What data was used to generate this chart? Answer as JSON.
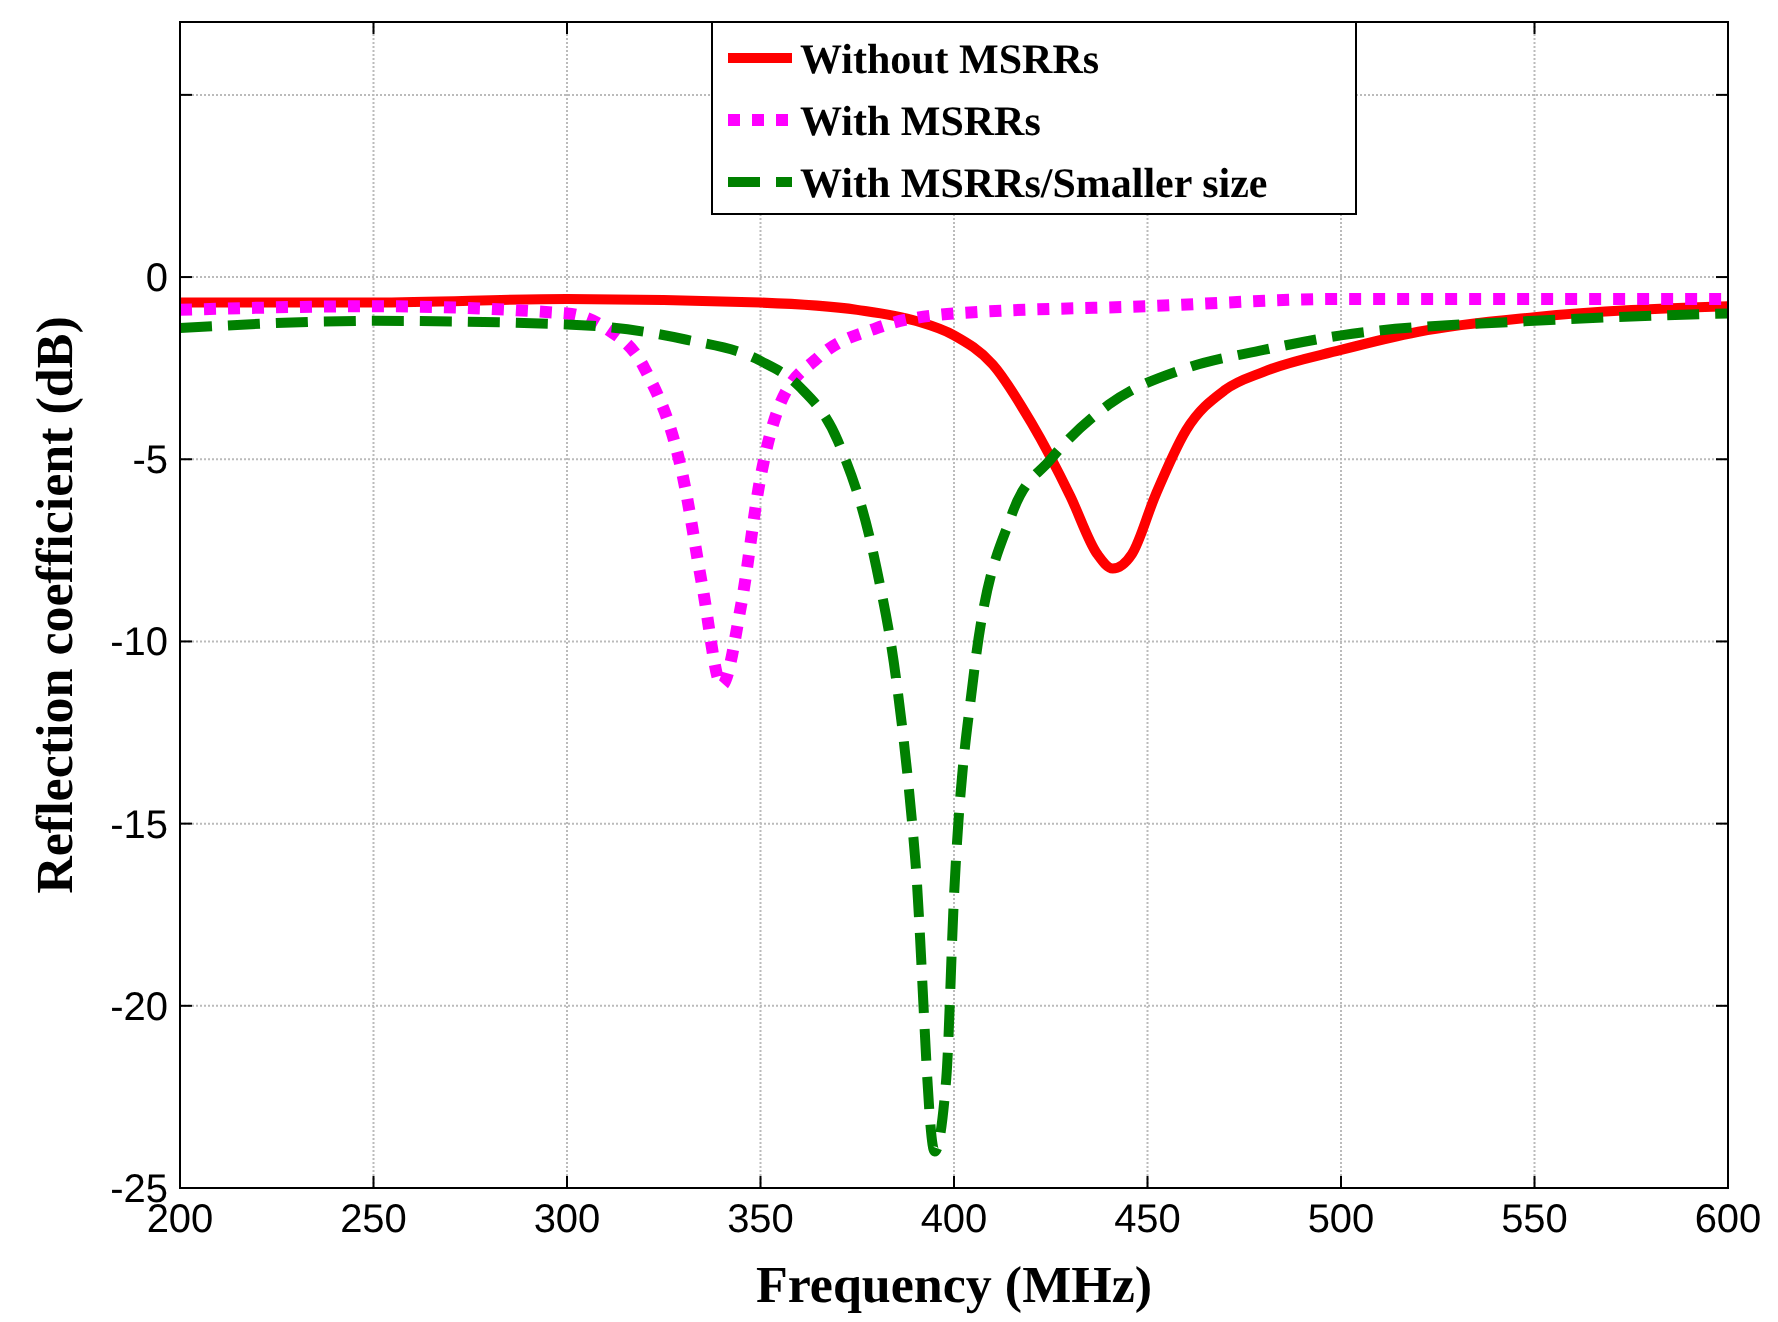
{
  "chart_data": {
    "type": "line",
    "xlabel": "Frequency (MHz)",
    "ylabel": "Reflection coefficient (dB)",
    "xlim": [
      200,
      600
    ],
    "xticks": [
      200,
      250,
      300,
      350,
      400,
      450,
      500,
      550,
      600
    ],
    "ylim": [
      -25,
      7
    ],
    "yticks": [
      -25,
      -20,
      -15,
      -10,
      -5,
      0,
      {
        "value": 5,
        "label": null
      }
    ],
    "grid": true,
    "legend": "top",
    "marker": "none",
    "series": [
      {
        "name": "Without MSRRs",
        "color": "#ff0000",
        "line_style": "solid",
        "x": [
          200,
          250,
          300,
          350,
          375,
          390,
          400,
          410,
          420,
          430,
          437,
          441,
          446,
          452,
          460,
          470,
          480,
          500,
          520,
          550,
          600
        ],
        "values": [
          -0.7,
          -0.7,
          -0.6,
          -0.7,
          -0.9,
          -1.2,
          -1.6,
          -2.4,
          -4,
          -6,
          -7.6,
          -8,
          -7.6,
          -6,
          -4.2,
          -3.1,
          -2.6,
          -2,
          -1.5,
          -1.1,
          -0.8
        ]
      },
      {
        "name": "With MSRRs",
        "color": "#ff00ff",
        "line_style": "dotted",
        "x": [
          200,
          250,
          300,
          310,
          320,
          330,
          335,
          340,
          345,
          350,
          355,
          365,
          380,
          400,
          450,
          500,
          600
        ],
        "values": [
          -0.9,
          -0.8,
          -1,
          -1.4,
          -2.5,
          -5.5,
          -8.5,
          -11.2,
          -9,
          -5.5,
          -3.5,
          -2.2,
          -1.4,
          -1,
          -0.8,
          -0.6,
          -0.6
        ]
      },
      {
        "name": "With MSRRs/Smaller size",
        "color": "#008000",
        "line_style": "dashed",
        "x": [
          200,
          250,
          300,
          330,
          350,
          360,
          370,
          380,
          385,
          390,
          395,
          398,
          400,
          405,
          415,
          425,
          440,
          460,
          480,
          500,
          550,
          600
        ],
        "values": [
          -1.4,
          -1.2,
          -1.3,
          -1.7,
          -2.3,
          -3,
          -4.5,
          -8,
          -11,
          -16,
          -24,
          -22,
          -17,
          -11,
          -6.5,
          -5,
          -3.5,
          -2.5,
          -2,
          -1.6,
          -1.2,
          -1
        ]
      }
    ]
  }
}
